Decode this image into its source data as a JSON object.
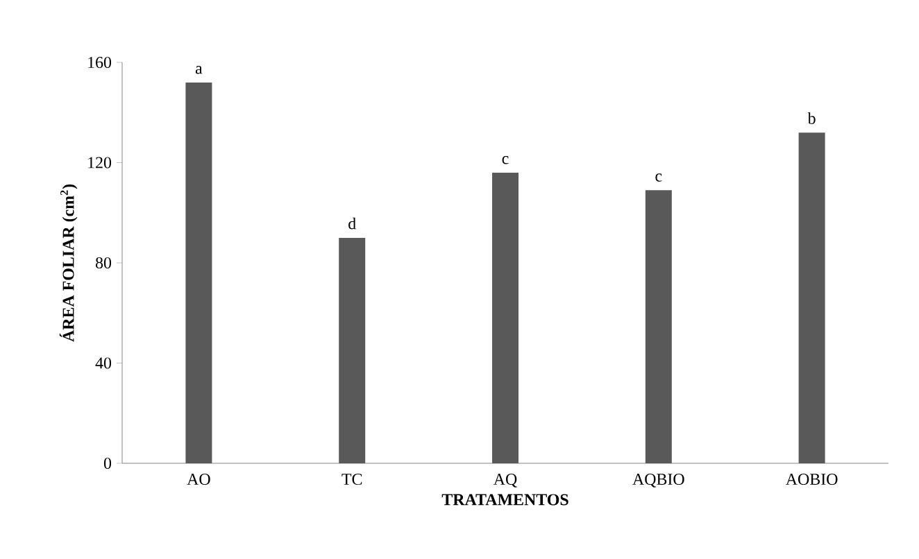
{
  "chart_data": {
    "type": "bar",
    "ylabel": "ÁREA FOLIAR (cm$^{2}$)",
    "xlabel": "TRATAMENTOS",
    "categories": [
      "AO",
      "TC",
      "AQ",
      "AQBIO",
      "AOBIO"
    ],
    "values": [
      152,
      90,
      116,
      109,
      132
    ],
    "color": "#595959",
    "ylim": [
      0,
      160
    ],
    "yticks": [
      0,
      40,
      80,
      120,
      160
    ],
    "grid": false,
    "annotations": [
      {
        "text": "a",
        "x": "AO",
        "y": 152
      },
      {
        "text": "d",
        "x": "TC",
        "y": 90
      },
      {
        "text": "c",
        "x": "AQ",
        "y": 116
      },
      {
        "text": "c",
        "x": "AQBIO",
        "y": 109
      },
      {
        "text": "b",
        "x": "AOBIO",
        "y": 132
      }
    ]
  }
}
